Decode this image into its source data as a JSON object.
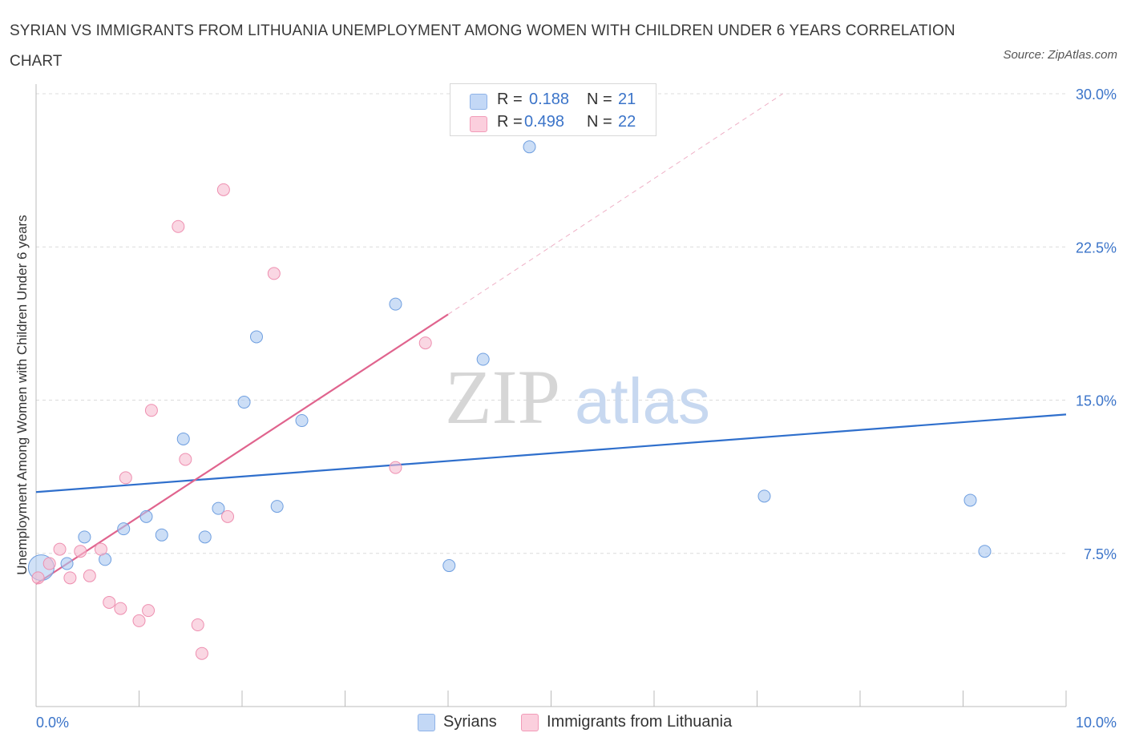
{
  "title": "SYRIAN VS IMMIGRANTS FROM LITHUANIA UNEMPLOYMENT AMONG WOMEN WITH CHILDREN UNDER 6 YEARS CORRELATION CHART",
  "source": "Source: ZipAtlas.com",
  "watermark": {
    "zip": "ZIP",
    "atlas": "atlas"
  },
  "legend": {
    "rows": [
      {
        "r_label": "R =",
        "r_value": "0.188",
        "n_label": "N =",
        "n_value": "21",
        "color": "#aac8f0"
      },
      {
        "r_label": "R =",
        "r_value": "0.498",
        "n_label": "N =",
        "n_value": "22",
        "color": "#f7bcd0"
      }
    ]
  },
  "bottom_legend": {
    "items": [
      {
        "label": "Syrians",
        "color": "#aac8f0"
      },
      {
        "label": "Immigrants from Lithuania",
        "color": "#f7bcd0"
      }
    ]
  },
  "chart_data": {
    "type": "scatter",
    "title": "SYRIAN VS IMMIGRANTS FROM LITHUANIA UNEMPLOYMENT AMONG WOMEN WITH CHILDREN UNDER 6 YEARS CORRELATION CHART",
    "xlabel": "",
    "ylabel": "Unemployment Among Women with Children Under 6 years",
    "xlim": [
      0,
      10
    ],
    "ylim": [
      0,
      30
    ],
    "x_tick_labels": [
      {
        "value": 0,
        "label": "0.0%"
      },
      {
        "value": 10,
        "label": "10.0%"
      }
    ],
    "y_tick_labels": [
      {
        "value": 7.5,
        "label": "7.5%"
      },
      {
        "value": 15,
        "label": "15.0%"
      },
      {
        "value": 22.5,
        "label": "22.5%"
      },
      {
        "value": 30,
        "label": "30.0%"
      }
    ],
    "grid": true,
    "series": [
      {
        "name": "Syrians",
        "color": "#aac8f0",
        "stroke": "#6f9fe0",
        "trend_color": "#2f6fcc",
        "trend": {
          "x0": 0,
          "y0": 10.5,
          "x1": 10,
          "y1": 14.3
        },
        "points": [
          {
            "x": 0.05,
            "y": 6.8,
            "big": true
          },
          {
            "x": 0.3,
            "y": 7.0
          },
          {
            "x": 0.47,
            "y": 8.3
          },
          {
            "x": 0.67,
            "y": 7.2
          },
          {
            "x": 0.85,
            "y": 8.7
          },
          {
            "x": 1.07,
            "y": 9.3
          },
          {
            "x": 1.22,
            "y": 8.4
          },
          {
            "x": 1.43,
            "y": 13.1
          },
          {
            "x": 1.64,
            "y": 8.3
          },
          {
            "x": 1.77,
            "y": 9.7
          },
          {
            "x": 2.02,
            "y": 14.9
          },
          {
            "x": 2.14,
            "y": 18.1
          },
          {
            "x": 2.34,
            "y": 9.8
          },
          {
            "x": 2.58,
            "y": 14.0
          },
          {
            "x": 3.49,
            "y": 19.7
          },
          {
            "x": 4.01,
            "y": 6.9
          },
          {
            "x": 4.34,
            "y": 17.0
          },
          {
            "x": 4.79,
            "y": 27.4
          },
          {
            "x": 7.07,
            "y": 10.3
          },
          {
            "x": 9.07,
            "y": 10.1
          },
          {
            "x": 9.21,
            "y": 7.6
          }
        ]
      },
      {
        "name": "Immigrants from Lithuania",
        "color": "#f7bcd0",
        "stroke": "#ee8fb0",
        "trend_color": "#e0648e",
        "trend": {
          "x0": 0,
          "y0": 6.0,
          "x1": 4.0,
          "y1": 19.2
        },
        "trend_dashed": {
          "x0": 4.0,
          "y0": 19.2,
          "x1": 7.25,
          "y1": 30.0
        },
        "points": [
          {
            "x": 0.02,
            "y": 6.3
          },
          {
            "x": 0.13,
            "y": 7.0
          },
          {
            "x": 0.23,
            "y": 7.7
          },
          {
            "x": 0.33,
            "y": 6.3
          },
          {
            "x": 0.43,
            "y": 7.6
          },
          {
            "x": 0.52,
            "y": 6.4
          },
          {
            "x": 0.63,
            "y": 7.7
          },
          {
            "x": 0.71,
            "y": 5.1
          },
          {
            "x": 0.82,
            "y": 4.8
          },
          {
            "x": 0.87,
            "y": 11.2
          },
          {
            "x": 1.0,
            "y": 4.2
          },
          {
            "x": 1.09,
            "y": 4.7
          },
          {
            "x": 1.12,
            "y": 14.5
          },
          {
            "x": 1.38,
            "y": 23.5
          },
          {
            "x": 1.45,
            "y": 12.1
          },
          {
            "x": 1.57,
            "y": 4.0
          },
          {
            "x": 1.61,
            "y": 2.6
          },
          {
            "x": 1.82,
            "y": 25.3
          },
          {
            "x": 1.86,
            "y": 9.3
          },
          {
            "x": 2.31,
            "y": 21.2
          },
          {
            "x": 3.49,
            "y": 11.7
          },
          {
            "x": 3.78,
            "y": 17.8
          }
        ]
      }
    ]
  }
}
